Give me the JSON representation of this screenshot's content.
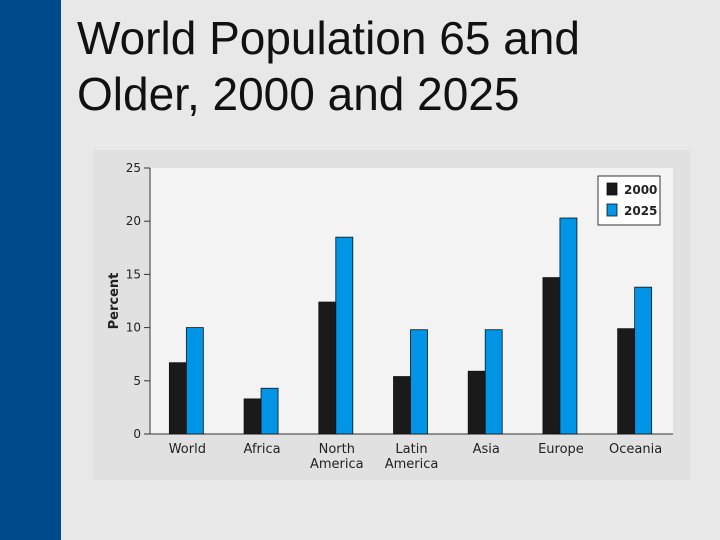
{
  "slide": {
    "title_line1": "World Population 65 and",
    "title_line2": "Older, 2000 and 2025"
  },
  "colors": {
    "sidebar": "#004a8c",
    "series_2000": "#1a1a1a",
    "series_2025": "#0095e6"
  },
  "chart_data": {
    "type": "bar",
    "title": "World Population 65 and Older, 2000 and 2025",
    "xlabel": "",
    "ylabel": "Percent",
    "ylim": [
      0,
      25
    ],
    "yticks": [
      0,
      5,
      10,
      15,
      20,
      25
    ],
    "grid": false,
    "legend_position": "top-right",
    "categories": [
      [
        "World"
      ],
      [
        "Africa"
      ],
      [
        "North",
        "America"
      ],
      [
        "Latin",
        "America"
      ],
      [
        "Asia"
      ],
      [
        "Europe"
      ],
      [
        "Oceania"
      ]
    ],
    "series": [
      {
        "name": "2000",
        "color": "#1a1a1a",
        "values": [
          6.7,
          3.3,
          12.4,
          5.4,
          5.9,
          14.7,
          9.9
        ]
      },
      {
        "name": "2025",
        "color": "#0095e6",
        "values": [
          10.0,
          4.3,
          18.5,
          9.8,
          9.8,
          20.3,
          13.8
        ]
      }
    ]
  }
}
